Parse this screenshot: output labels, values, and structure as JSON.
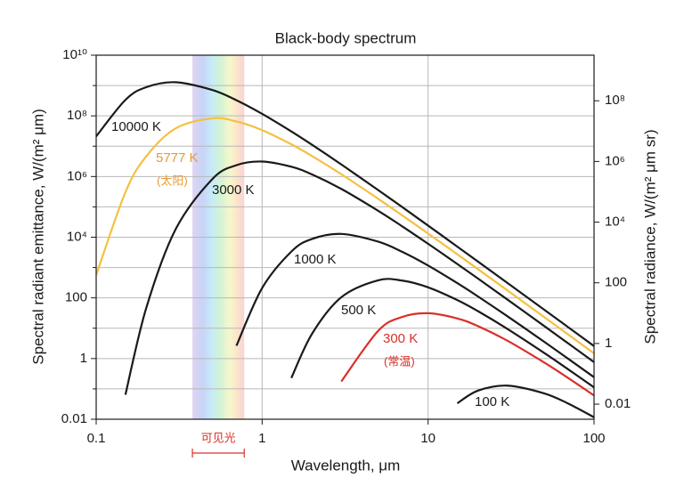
{
  "chart_data": {
    "type": "line",
    "title": "Black-body spectrum",
    "x_label": "Wavelength, μm",
    "y_label": "Spectral radiant emittance, W/(m² μm)",
    "y2_label": "Spectral radiance, W/(m² μm sr)",
    "log_x": true,
    "log_y": true,
    "grid": true,
    "xlim": [
      0.1,
      100
    ],
    "xticks": [
      0.1,
      1,
      10,
      100
    ],
    "ylim": [
      0.01,
      10000000000
    ],
    "yticks": [
      0.01,
      1,
      100,
      {
        "value": 10000,
        "label": "10⁴"
      },
      {
        "value": 1000000,
        "label": "10⁶"
      },
      {
        "value": 100000000,
        "label": "10⁸"
      },
      {
        "value": 10000000000,
        "label": "10¹⁰"
      }
    ],
    "yticks_minor": [
      0.1,
      10,
      1000,
      100000,
      10000000,
      1000000000
    ],
    "y2lim": [
      0.003183,
      3183098862
    ],
    "y2ticks": [
      0.01,
      1,
      100,
      {
        "value": 10000,
        "label": "10⁴"
      },
      {
        "value": 1000000,
        "label": "10⁶"
      },
      {
        "value": 100000000,
        "label": "10⁸"
      }
    ],
    "visible_band": {
      "label": "可见光",
      "range": [
        0.38,
        0.78
      ]
    },
    "x": [
      0.1,
      0.15,
      0.2,
      0.3,
      0.5,
      0.7,
      1,
      1.5,
      2,
      3,
      5,
      7,
      10,
      15,
      20,
      30,
      50,
      70,
      100
    ],
    "series": [
      {
        "name": "10000 K",
        "color": "#1a1a1a",
        "values": [
          21100000,
          336000000,
          879000000,
          1283000000,
          714000000,
          327000000,
          116300000,
          30600000,
          11100000,
          2500000,
          359000,
          97600,
          24200,
          4894,
          1568,
          313,
          41.0,
          10.72,
          2.58
        ]
      },
      {
        "name": "5777 K",
        "sublabel": "(太阳)",
        "color": "#f5c040",
        "label_color": "#e89a30",
        "values": [
          571,
          303000,
          4570000,
          38200000,
          82800000,
          65300000,
          33800000,
          11560000,
          4730000,
          1190000,
          185400,
          52100,
          13230,
          2727,
          882,
          178,
          23.4,
          6.15,
          1.484
        ]
      },
      {
        "name": "3000 K",
        "color": "#1a1a1a",
        "values": [
          null,
          0.064,
          45,
          17560,
          817000,
          2360000,
          3120000,
          2100000,
          1169000,
          390000,
          74400,
          22630,
          6080,
          1308,
          431,
          88.8,
          11.89,
          3.14,
          0.762
        ]
      },
      {
        "name": "1000 K",
        "color": "#1a1a1a",
        "values": [
          null,
          null,
          null,
          null,
          null,
          2.64,
          211,
          3363,
          8792,
          12830,
          7136,
          3269,
          1163,
          306,
          111,
          25,
          3.59,
          0.976,
          0.242
        ]
      },
      {
        "name": "500 K",
        "color": "#1a1a1a",
        "values": [
          null,
          null,
          null,
          null,
          null,
          null,
          null,
          0.2296,
          6.61,
          105.1,
          380,
          371,
          223,
          84.8,
          36.4,
          9.57,
          1.539,
          0.438,
          0.1122
        ]
      },
      {
        "name": "300 K",
        "sublabel": "(常温)",
        "color": "#d9302a",
        "label_color": "#d9302a",
        "values": [
          null,
          null,
          null,
          null,
          null,
          null,
          null,
          null,
          null,
          0.1756,
          8.17,
          23.6,
          31.2,
          21.0,
          11.69,
          3.9,
          0.744,
          0.2263,
          0.0608
        ]
      },
      {
        "name": "100 K",
        "color": "#1a1a1a",
        "values": [
          null,
          null,
          null,
          null,
          null,
          null,
          null,
          null,
          null,
          null,
          null,
          null,
          null,
          0.0336,
          0.0879,
          0.1283,
          0.0714,
          0.0327,
          0.01163
        ]
      }
    ]
  }
}
